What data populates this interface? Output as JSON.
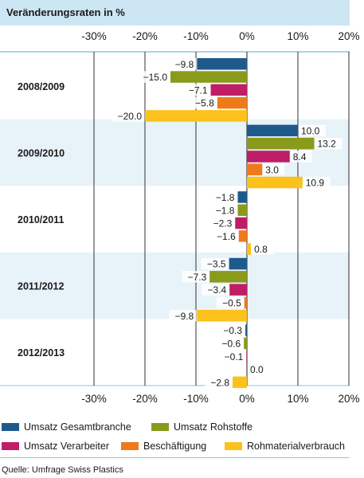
{
  "header": {
    "title": "Veränderungsraten in %"
  },
  "chart_data": {
    "type": "bar",
    "orientation": "horizontal",
    "title": "Veränderungsraten in %",
    "xlim": [
      -30,
      20
    ],
    "xticks": [
      -30,
      -20,
      -10,
      0,
      10,
      20
    ],
    "xtick_labels": [
      "-30%",
      "-20%",
      "-10%",
      "0%",
      "10%",
      "20%"
    ],
    "grid": true,
    "categories": [
      "2008/2009",
      "2009/2010",
      "2010/2011",
      "2011/2012",
      "2012/2013"
    ],
    "series": [
      {
        "name": "Umsatz Gesamtbranche",
        "color": "#1f5a8c",
        "values": [
          -9.8,
          10.0,
          -1.8,
          -3.5,
          -0.3
        ],
        "labels": [
          "−9.8",
          "10.0",
          "−1.8",
          "−3.5",
          "−0.3"
        ]
      },
      {
        "name": "Umsatz Rohstoffe",
        "color": "#8a9a1b",
        "values": [
          -15.0,
          13.2,
          -1.8,
          -7.3,
          -0.6
        ],
        "labels": [
          "−15.0",
          "13.2",
          "−1.8",
          "−7.3",
          "−0.6"
        ]
      },
      {
        "name": "Umsatz Verarbeiter",
        "color": "#bf1d66",
        "values": [
          -7.1,
          8.4,
          -2.3,
          -3.4,
          -0.1
        ],
        "labels": [
          "−7.1",
          "8.4",
          "−2.3",
          "−3.4",
          "−0.1"
        ]
      },
      {
        "name": "Beschäftigung",
        "color": "#f07a1a",
        "values": [
          -5.8,
          3.0,
          -1.6,
          -0.5,
          0.0
        ],
        "labels": [
          "−5.8",
          "3.0",
          "−1.6",
          "−0.5",
          "0.0"
        ]
      },
      {
        "name": "Rohmaterialverbrauch",
        "color": "#fcc21b",
        "values": [
          -20.0,
          10.9,
          0.8,
          -9.8,
          -2.8
        ],
        "labels": [
          "−20.0",
          "10.9",
          "0.8",
          "−9.8",
          "−2.8"
        ]
      }
    ],
    "band_colors": [
      "#ffffff",
      "#e8f2f9"
    ],
    "legend_placement": "bottom"
  },
  "legend": {
    "items": [
      {
        "label": "Umsatz Gesamtbranche",
        "color": "#1f5a8c"
      },
      {
        "label": "Umsatz Rohstoffe",
        "color": "#8a9a1b"
      },
      {
        "label": "Umsatz Verarbeiter",
        "color": "#bf1d66"
      },
      {
        "label": "Beschäftigung",
        "color": "#f07a1a"
      },
      {
        "label": "Rohmaterialverbrauch",
        "color": "#fcc21b"
      }
    ]
  },
  "source": "Quelle: Umfrage Swiss Plastics"
}
